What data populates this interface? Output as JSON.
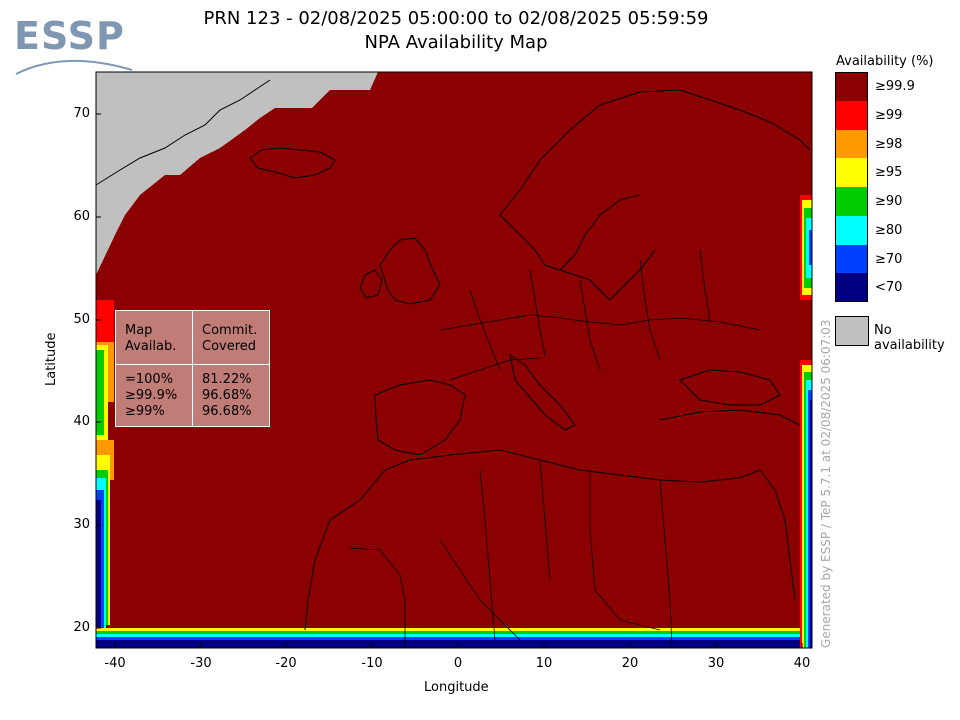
{
  "logo": {
    "text": "ESSP"
  },
  "title": {
    "line1": "PRN 123 - 02/08/2025 05:00:00 to 02/08/2025 05:59:59",
    "line2": "NPA Availability Map"
  },
  "axes": {
    "xlabel": "Longitude",
    "ylabel": "Latitude",
    "xticks": [
      "-40",
      "-30",
      "-20",
      "-10",
      "0",
      "10",
      "20",
      "30",
      "40"
    ],
    "yticks": [
      "70",
      "60",
      "50",
      "40",
      "30",
      "20"
    ],
    "xlim": [
      -42,
      42
    ],
    "ylim": [
      18,
      74
    ]
  },
  "stats": {
    "col1_header": [
      "Map",
      "Availab."
    ],
    "col2_header": [
      "Commit.",
      "Covered"
    ],
    "rows": [
      {
        "map": "=100%",
        "covered": "81.22%"
      },
      {
        "map": "≥99.9%",
        "covered": "96.68%"
      },
      {
        "map": "≥99%",
        "covered": "96.68%"
      }
    ]
  },
  "legend": {
    "title": "Availability (%)",
    "items": [
      {
        "label": "≥99.9",
        "color": "#8b0000"
      },
      {
        "label": "≥99",
        "color": "#ff0000"
      },
      {
        "label": "≥98",
        "color": "#ff9900"
      },
      {
        "label": "≥95",
        "color": "#ffff00"
      },
      {
        "label": "≥90",
        "color": "#00cc00"
      },
      {
        "label": "≥80",
        "color": "#00ffff"
      },
      {
        "label": "≥70",
        "color": "#0040ff"
      },
      {
        "label": "<70",
        "color": "#000080"
      }
    ],
    "no_availability": {
      "label": "No availability",
      "color": "#c0c0c0"
    }
  },
  "generated_note": "Generated by ESSP / TeP 5.7.1 at 02/08/2025 06:07:03",
  "colors": {
    "dominant": "#8b0000",
    "no_availability": "#c0c0c0"
  }
}
